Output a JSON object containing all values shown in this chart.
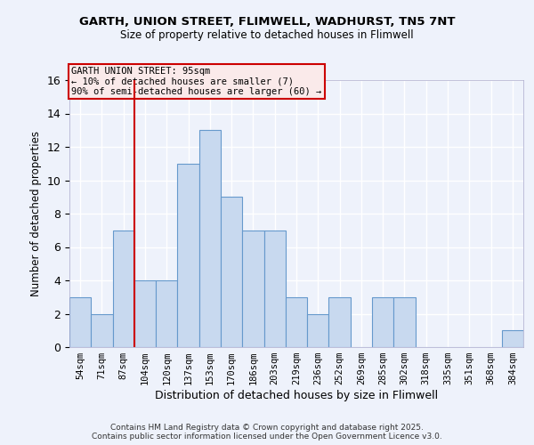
{
  "title1": "GARTH, UNION STREET, FLIMWELL, WADHURST, TN5 7NT",
  "title2": "Size of property relative to detached houses in Flimwell",
  "xlabel": "Distribution of detached houses by size in Flimwell",
  "ylabel": "Number of detached properties",
  "categories": [
    "54sqm",
    "71sqm",
    "87sqm",
    "104sqm",
    "120sqm",
    "137sqm",
    "153sqm",
    "170sqm",
    "186sqm",
    "203sqm",
    "219sqm",
    "236sqm",
    "252sqm",
    "269sqm",
    "285sqm",
    "302sqm",
    "318sqm",
    "335sqm",
    "351sqm",
    "368sqm",
    "384sqm"
  ],
  "values": [
    3,
    2,
    7,
    4,
    4,
    11,
    13,
    9,
    7,
    7,
    3,
    2,
    3,
    0,
    3,
    3,
    0,
    0,
    0,
    0,
    1
  ],
  "bar_color": "#c8d9ef",
  "bar_edge_color": "#6699cc",
  "vline_x": 2.5,
  "vline_color": "#cc0000",
  "annotation_text": "GARTH UNION STREET: 95sqm\n← 10% of detached houses are smaller (7)\n90% of semi-detached houses are larger (60) →",
  "annotation_edge_color": "#cc0000",
  "ylim": [
    0,
    16
  ],
  "yticks": [
    0,
    2,
    4,
    6,
    8,
    10,
    12,
    14,
    16
  ],
  "background_color": "#eef2fb",
  "grid_color": "#ffffff",
  "footer": "Contains HM Land Registry data © Crown copyright and database right 2025.\nContains public sector information licensed under the Open Government Licence v3.0."
}
